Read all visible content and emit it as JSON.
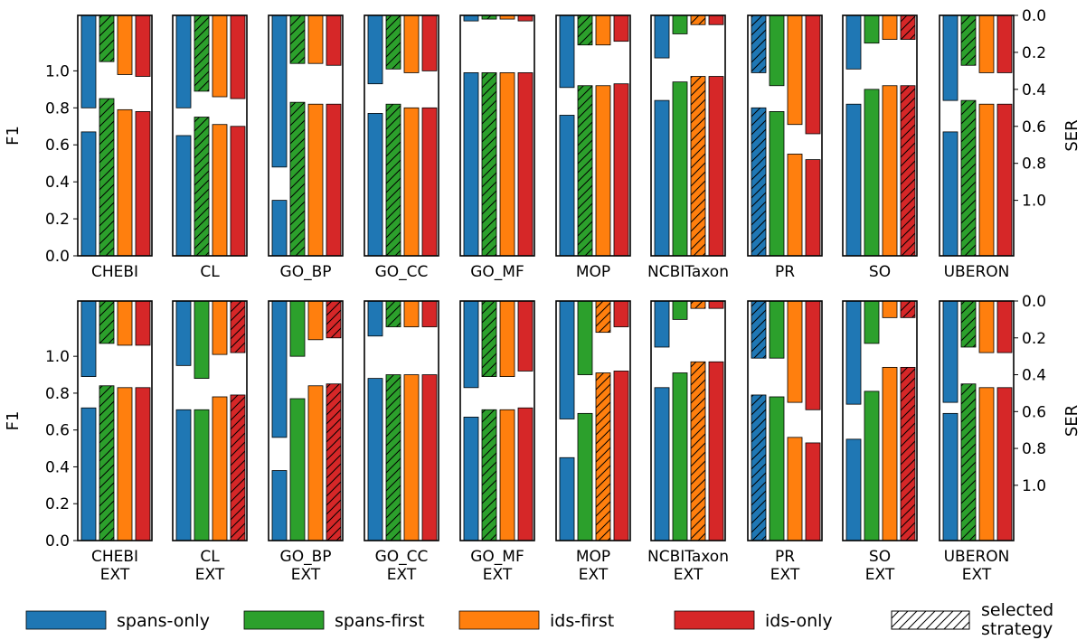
{
  "chart_data": {
    "type": "bar",
    "description_axes": {
      "left_label": "F1",
      "right_label": "SER",
      "left_ticks": [
        "0.0",
        "0.2",
        "0.4",
        "0.6",
        "0.8",
        "1.0"
      ],
      "right_ticks": [
        "0.0",
        "0.2",
        "0.4",
        "0.6",
        "0.8",
        "1.0"
      ],
      "left_ylim": [
        0,
        1.3
      ],
      "right_ylim": [
        0,
        1.3
      ],
      "right_axis_inverted": true
    },
    "strategies": [
      "spans-only",
      "spans-first",
      "ids-first",
      "ids-only"
    ],
    "colors": {
      "spans-only": "#1f77b4",
      "spans-first": "#2ca02c",
      "ids-first": "#ff7f0e",
      "ids-only": "#d62728"
    },
    "legend": {
      "items": [
        "spans-only",
        "spans-first",
        "ids-first",
        "ids-only"
      ],
      "selected_label": "selected strategy",
      "placement": "bottom"
    },
    "rows": [
      {
        "panels": [
          {
            "name": "CHEBI",
            "label_lines": [
              "CHEBI"
            ],
            "f1": [
              0.67,
              0.85,
              0.79,
              0.78
            ],
            "ser": [
              0.5,
              0.25,
              0.32,
              0.33
            ],
            "selected": 1
          },
          {
            "name": "CL",
            "label_lines": [
              "CL"
            ],
            "f1": [
              0.65,
              0.75,
              0.71,
              0.7
            ],
            "ser": [
              0.5,
              0.41,
              0.44,
              0.45
            ],
            "selected": 1
          },
          {
            "name": "GO_BP",
            "label_lines": [
              "GO_BP"
            ],
            "f1": [
              0.3,
              0.83,
              0.82,
              0.82
            ],
            "ser": [
              0.82,
              0.26,
              0.26,
              0.27
            ],
            "selected": 1
          },
          {
            "name": "GO_CC",
            "label_lines": [
              "GO_CC"
            ],
            "f1": [
              0.77,
              0.82,
              0.8,
              0.8
            ],
            "ser": [
              0.37,
              0.29,
              0.31,
              0.3
            ],
            "selected": 1
          },
          {
            "name": "GO_MF",
            "label_lines": [
              "GO_MF"
            ],
            "f1": [
              0.99,
              0.99,
              0.99,
              0.99
            ],
            "ser": [
              0.03,
              0.02,
              0.02,
              0.03
            ],
            "selected": 1
          },
          {
            "name": "MOP",
            "label_lines": [
              "MOP"
            ],
            "f1": [
              0.76,
              0.92,
              0.92,
              0.93
            ],
            "ser": [
              0.39,
              0.16,
              0.16,
              0.14
            ],
            "selected": 1
          },
          {
            "name": "NCBITaxon",
            "label_lines": [
              "NCBITaxon"
            ],
            "f1": [
              0.84,
              0.94,
              0.97,
              0.97
            ],
            "ser": [
              0.23,
              0.1,
              0.05,
              0.05
            ],
            "selected": 2
          },
          {
            "name": "PR",
            "label_lines": [
              "PR"
            ],
            "f1": [
              0.8,
              0.78,
              0.55,
              0.52
            ],
            "ser": [
              0.31,
              0.38,
              0.59,
              0.64
            ],
            "selected": 0
          },
          {
            "name": "SO",
            "label_lines": [
              "SO"
            ],
            "f1": [
              0.82,
              0.9,
              0.92,
              0.92
            ],
            "ser": [
              0.29,
              0.15,
              0.13,
              0.13
            ],
            "selected": 3
          },
          {
            "name": "UBERON",
            "label_lines": [
              "UBERON"
            ],
            "f1": [
              0.67,
              0.84,
              0.82,
              0.82
            ],
            "ser": [
              0.46,
              0.27,
              0.31,
              0.31
            ],
            "selected": 1
          }
        ]
      },
      {
        "panels": [
          {
            "name": "CHEBI EXT",
            "label_lines": [
              "CHEBI",
              "EXT"
            ],
            "f1": [
              0.72,
              0.84,
              0.83,
              0.83
            ],
            "ser": [
              0.41,
              0.23,
              0.24,
              0.24
            ],
            "selected": 1
          },
          {
            "name": "CL EXT",
            "label_lines": [
              "CL",
              "EXT"
            ],
            "f1": [
              0.71,
              0.71,
              0.78,
              0.79
            ],
            "ser": [
              0.35,
              0.42,
              0.29,
              0.28
            ],
            "selected": 3
          },
          {
            "name": "GO_BP EXT",
            "label_lines": [
              "GO_BP",
              "EXT"
            ],
            "f1": [
              0.38,
              0.77,
              0.84,
              0.85
            ],
            "ser": [
              0.74,
              0.3,
              0.21,
              0.2
            ],
            "selected": 3
          },
          {
            "name": "GO_CC EXT",
            "label_lines": [
              "GO_CC",
              "EXT"
            ],
            "f1": [
              0.88,
              0.9,
              0.9,
              0.9
            ],
            "ser": [
              0.19,
              0.14,
              0.14,
              0.14
            ],
            "selected": 1
          },
          {
            "name": "GO_MF EXT",
            "label_lines": [
              "GO_MF",
              "EXT"
            ],
            "f1": [
              0.67,
              0.71,
              0.71,
              0.72
            ],
            "ser": [
              0.47,
              0.41,
              0.41,
              0.38
            ],
            "selected": 1
          },
          {
            "name": "MOP EXT",
            "label_lines": [
              "MOP",
              "EXT"
            ],
            "f1": [
              0.45,
              0.69,
              0.91,
              0.92
            ],
            "ser": [
              0.64,
              0.4,
              0.17,
              0.14
            ],
            "selected": 2
          },
          {
            "name": "NCBITaxon EXT",
            "label_lines": [
              "NCBITaxon",
              "EXT"
            ],
            "f1": [
              0.83,
              0.91,
              0.97,
              0.97
            ],
            "ser": [
              0.25,
              0.1,
              0.04,
              0.04
            ],
            "selected": 2
          },
          {
            "name": "PR EXT",
            "label_lines": [
              "PR",
              "EXT"
            ],
            "f1": [
              0.79,
              0.78,
              0.56,
              0.53
            ],
            "ser": [
              0.31,
              0.31,
              0.55,
              0.59
            ],
            "selected": 0
          },
          {
            "name": "SO EXT",
            "label_lines": [
              "SO",
              "EXT"
            ],
            "f1": [
              0.55,
              0.81,
              0.94,
              0.94
            ],
            "ser": [
              0.56,
              0.23,
              0.09,
              0.09
            ],
            "selected": 3
          },
          {
            "name": "UBERON EXT",
            "label_lines": [
              "UBERON",
              "EXT"
            ],
            "f1": [
              0.69,
              0.85,
              0.83,
              0.83
            ],
            "ser": [
              0.55,
              0.25,
              0.28,
              0.28
            ],
            "selected": 1
          }
        ]
      }
    ]
  }
}
